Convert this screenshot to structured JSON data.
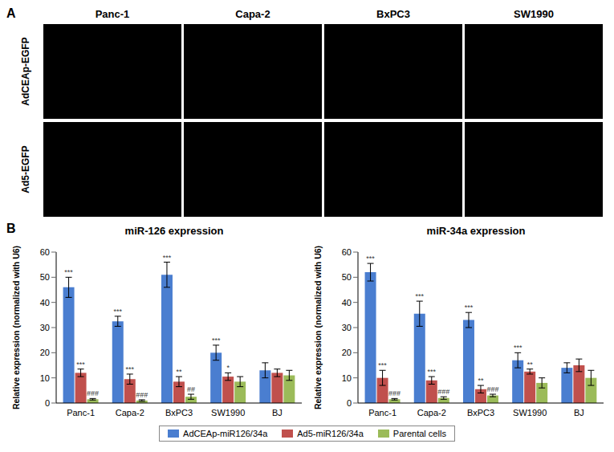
{
  "panel_labels": [
    "A",
    "B"
  ],
  "images": {
    "columns": [
      "Panc-1",
      "Capa-2",
      "BxPC3",
      "SW1990"
    ],
    "rows": [
      "AdCEAp-EGFP",
      "Ad5-EGFP"
    ]
  },
  "chart_data": [
    {
      "type": "bar",
      "title": "miR-126 expression",
      "y_label": "Relative expression (normalized with U6)",
      "categories": [
        "Panc-1",
        "Capa-2",
        "BxPC3",
        "SW1990",
        "BJ"
      ],
      "ylim": [
        0,
        60
      ],
      "yticks": [
        0,
        10,
        20,
        30,
        40,
        50,
        60
      ],
      "grid": false,
      "legend": "bottom",
      "series": [
        {
          "name": "AdCEAp-miR126/34a",
          "color": "#4a7ed0",
          "values": [
            46,
            32.5,
            51,
            20,
            13
          ],
          "errors": [
            4,
            2,
            5,
            3,
            3
          ],
          "significance": [
            "***",
            "***",
            "***",
            "***",
            null
          ]
        },
        {
          "name": "Ad5-miR126/34a",
          "color": "#c0504d",
          "values": [
            12,
            9.5,
            8.5,
            10.5,
            12
          ],
          "errors": [
            1.5,
            2,
            2,
            1.5,
            1.5
          ],
          "significance": [
            "***",
            "***",
            "**",
            "*",
            null
          ]
        },
        {
          "name": "Parental cells",
          "color": "#9bbb59",
          "values": [
            1.5,
            1,
            2.5,
            8.5,
            11
          ],
          "errors": [
            0.3,
            0.3,
            1,
            2,
            2
          ],
          "significance": [
            "###",
            "###",
            "##",
            null,
            null
          ]
        }
      ]
    },
    {
      "type": "bar",
      "title": "miR-34a expression",
      "y_label": "Relative expression (normalized with U6)",
      "categories": [
        "Panc-1",
        "Capa-2",
        "BxPC3",
        "SW1990",
        "BJ"
      ],
      "ylim": [
        0,
        60
      ],
      "yticks": [
        0,
        10,
        20,
        30,
        40,
        50,
        60
      ],
      "grid": false,
      "series": [
        {
          "name": "AdCEAp-miR126/34a",
          "color": "#4a7ed0",
          "values": [
            52,
            35.5,
            33,
            17,
            14
          ],
          "errors": [
            3.5,
            5,
            3,
            3,
            2
          ],
          "significance": [
            "***",
            "***",
            "***",
            "***",
            null
          ]
        },
        {
          "name": "Ad5-miR126/34a",
          "color": "#c0504d",
          "values": [
            10,
            9,
            5.5,
            12.5,
            15
          ],
          "errors": [
            3,
            1.5,
            1.5,
            1,
            2.5
          ],
          "significance": [
            "***",
            "***",
            "**",
            "**",
            null
          ]
        },
        {
          "name": "Parental cells",
          "color": "#9bbb59",
          "values": [
            1.5,
            2,
            3,
            8,
            10
          ],
          "errors": [
            0.3,
            0.5,
            0.5,
            2,
            3
          ],
          "significance": [
            "###",
            "###",
            "###",
            null,
            null
          ]
        }
      ]
    }
  ]
}
